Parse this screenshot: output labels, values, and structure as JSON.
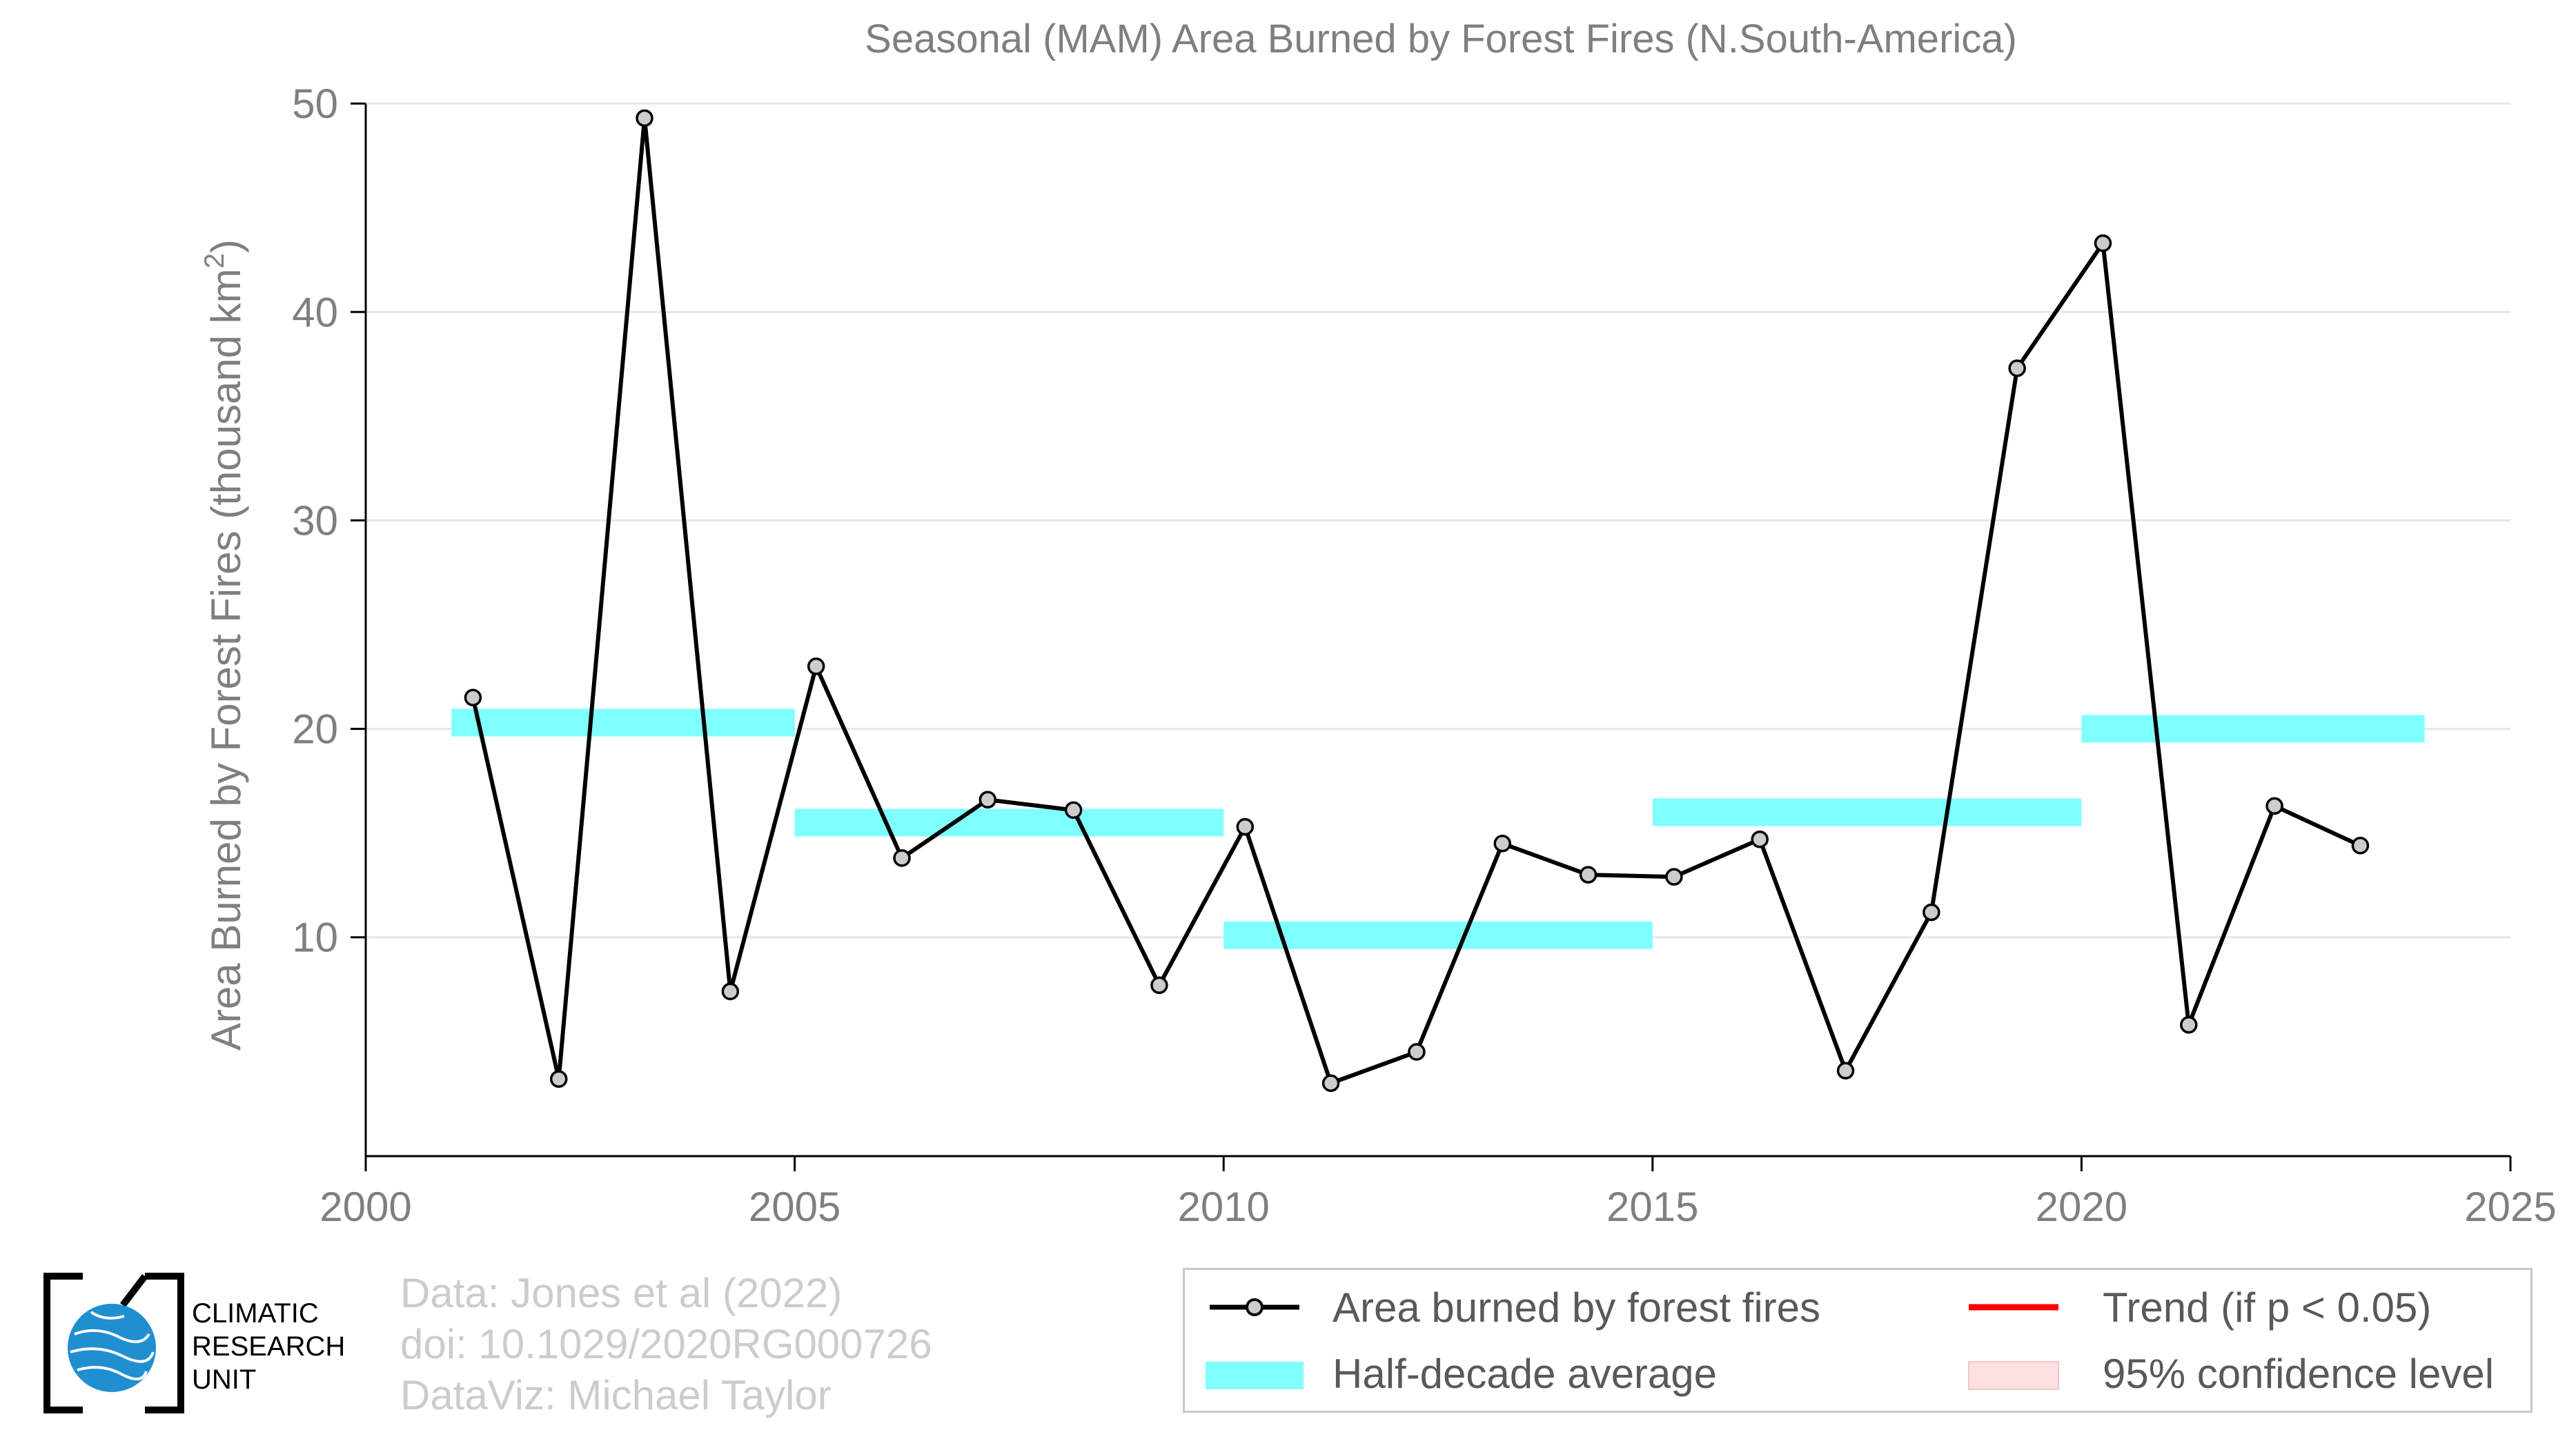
{
  "chart_data": {
    "type": "line",
    "title": "Seasonal (MAM) Area Burned by Forest Fires (N.South-America)",
    "xlabel": "",
    "ylabel": "Area Burned by Forest Fires (thousand km",
    "ylabel_superscript": "2",
    "ylabel_suffix": ")",
    "xlim": [
      2000,
      2025
    ],
    "ylim": [
      -0.5,
      50.5
    ],
    "xticks": [
      2000,
      2005,
      2010,
      2015,
      2020,
      2025
    ],
    "yticks": [
      10,
      20,
      30,
      40,
      50
    ],
    "grid": "horizontal",
    "series": [
      {
        "name": "Area burned by forest fires",
        "color": "#000000",
        "marker_fill": "#cccccc",
        "x": [
          2001.25,
          2002.25,
          2003.25,
          2004.25,
          2005.25,
          2006.25,
          2007.25,
          2008.25,
          2009.25,
          2010.25,
          2011.25,
          2012.25,
          2013.25,
          2014.25,
          2015.25,
          2016.25,
          2017.25,
          2018.25,
          2019.25,
          2020.25,
          2021.25,
          2022.25,
          2023.25
        ],
        "y": [
          21.5,
          3.2,
          49.3,
          7.4,
          23.0,
          13.8,
          16.6,
          16.1,
          7.7,
          15.3,
          3.0,
          4.5,
          14.5,
          13.0,
          12.9,
          14.7,
          3.6,
          11.2,
          37.3,
          43.3,
          5.8,
          16.3,
          14.4
        ]
      }
    ],
    "half_decade_average": {
      "name": "Half-decade average",
      "color": "#80ffff",
      "segments": [
        {
          "x_start": 2001,
          "x_end": 2005,
          "y": 20.3
        },
        {
          "x_start": 2005,
          "x_end": 2010,
          "y": 15.5
        },
        {
          "x_start": 2010,
          "x_end": 2015,
          "y": 10.1
        },
        {
          "x_start": 2015,
          "x_end": 2020,
          "y": 16.0
        },
        {
          "x_start": 2020,
          "x_end": 2024,
          "y": 20.0
        }
      ]
    },
    "legend": {
      "position": "bottom-right",
      "entries": [
        {
          "label": "Area burned by forest fires",
          "color": "#000000"
        },
        {
          "label": "Trend (if p < 0.05)",
          "color": "#ff0000"
        },
        {
          "label": "Half-decade average",
          "color": "#80ffff"
        },
        {
          "label": "95% confidence level",
          "color": "#fde0e0"
        }
      ]
    }
  },
  "credits": {
    "line1": "Data: Jones et al (2022)",
    "line2": "doi: 10.1029/2020RG000726",
    "line3": "DataViz: Michael Taylor"
  },
  "logo": {
    "line1": "CLIMATIC",
    "line2": "RESEARCH",
    "line3": "UNIT"
  }
}
